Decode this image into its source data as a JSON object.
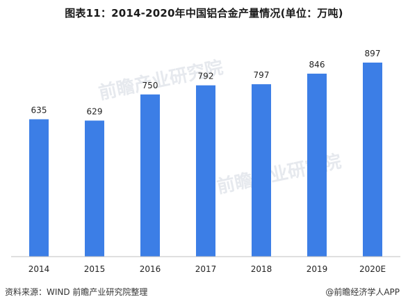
{
  "title": "图表11：2014-2020年中国铝合金产量情况(单位：万吨)",
  "footer": {
    "source": "资料来源：WIND 前瞻产业研究院整理",
    "credit": "@前瞻经济学人APP"
  },
  "watermark": "前瞻产业研究院",
  "colors": {
    "bar": "#3c7ee6",
    "axis": "#bfbfbf"
  },
  "chart_data": {
    "type": "bar",
    "categories": [
      "2014",
      "2015",
      "2016",
      "2017",
      "2018",
      "2019",
      "2020E"
    ],
    "values": [
      635,
      629,
      750,
      792,
      797,
      846,
      897
    ],
    "data_labels": [
      "635",
      "629",
      "750",
      "792",
      "797",
      "846",
      "897"
    ],
    "ylim": [
      0,
      1000
    ],
    "grid": false,
    "legend": "none"
  }
}
